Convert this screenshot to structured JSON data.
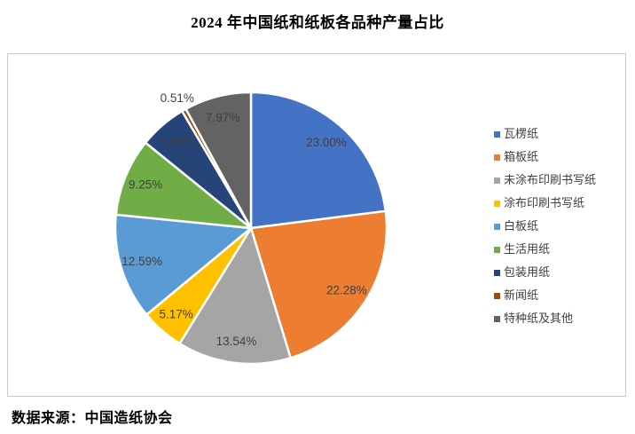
{
  "page": {
    "title": "2024 年中国纸和纸板各品种产量占比",
    "source": "数据来源：中国造纸协会"
  },
  "chart_data": {
    "type": "pie",
    "title": "2024 年中国纸和纸板各品种产量占比",
    "unit": "%",
    "legend_position": "right",
    "start_angle_deg": 0,
    "direction": "clockwise",
    "label_color": "#404040",
    "slice_border_color": "#ffffff",
    "slices": [
      {
        "label": "瓦楞纸",
        "value": 23.0,
        "display": "23.00%",
        "color": "#4472C4",
        "label_pos": "inside"
      },
      {
        "label": "箱板纸",
        "value": 22.28,
        "display": "22.28%",
        "color": "#ED7D31",
        "label_pos": "inside"
      },
      {
        "label": "未涂布印刷书写纸",
        "value": 13.54,
        "display": "13.54%",
        "color": "#A5A5A5",
        "label_pos": "inside"
      },
      {
        "label": "涂布印刷书写纸",
        "value": 5.17,
        "display": "5.17%",
        "color": "#FFC000",
        "label_pos": "inside"
      },
      {
        "label": "白板纸",
        "value": 12.59,
        "display": "12.59%",
        "color": "#5B9BD5",
        "label_pos": "inside"
      },
      {
        "label": "生活用纸",
        "value": 9.25,
        "display": "9.25%",
        "color": "#70AD47",
        "label_pos": "inside"
      },
      {
        "label": "包装用纸",
        "value": 5.69,
        "display": "5.69%",
        "color": "#264478",
        "label_pos": "inside"
      },
      {
        "label": "新闻纸",
        "value": 0.51,
        "display": "0.51%",
        "color": "#9E480E",
        "label_pos": "outside"
      },
      {
        "label": "特种纸及其他",
        "value": 7.97,
        "display": "7.97%",
        "color": "#636363",
        "label_pos": "inside"
      }
    ]
  }
}
